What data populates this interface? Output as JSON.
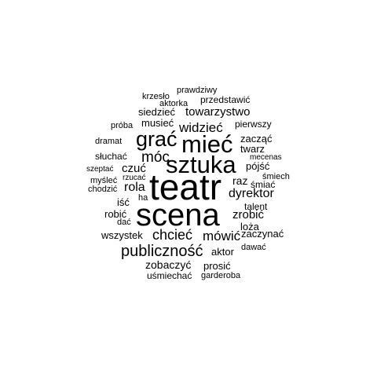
{
  "cloud": {
    "words": [
      "prawdziwy",
      "krzesło",
      "przedstawić",
      "aktorka",
      "siedzieć",
      "towarzystwo",
      "próba",
      "musieć",
      "pierwszy",
      "widzieć",
      "dramat",
      "grać",
      "mieć",
      "zacząć",
      "twarz",
      "słuchać",
      "móc",
      "sztuka",
      "pójść",
      "mecenas",
      "szeptać",
      "czuć",
      "rzucać",
      "śmiech",
      "myśleć",
      "raz",
      "śmiać",
      "chodzić",
      "rola",
      "teatr",
      "dyrektor",
      "ha",
      "iść",
      "talent",
      "robić",
      "scena",
      "zrobić",
      "dać",
      "loża",
      "wszystek",
      "chcieć",
      "mówić",
      "zaczynać",
      "dawać",
      "publiczność",
      "aktor",
      "zobaczyć",
      "prosić",
      "uśmiechać",
      "garderoba"
    ]
  }
}
